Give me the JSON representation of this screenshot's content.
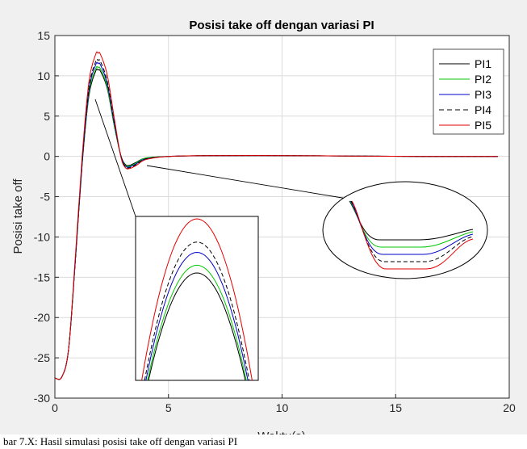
{
  "chart_data": {
    "type": "line",
    "title": "Posisi take off dengan variasi PI",
    "xlabel": "Waktu(s)",
    "ylabel": "Posisi take off",
    "xlim": [
      0,
      20
    ],
    "ylim": [
      -30,
      15
    ],
    "xticks": [
      0,
      5,
      10,
      15,
      20
    ],
    "yticks": [
      15,
      10,
      5,
      0,
      -5,
      -10,
      -15,
      -20,
      -25,
      -30
    ],
    "grid": true,
    "legend_position": "top-right",
    "series": [
      {
        "name": "PI1",
        "color": "#000000",
        "dash": "solid",
        "peak": 10.7,
        "undershoot": -1.1,
        "x": [
          0,
          0.3,
          0.6,
          0.9,
          1.2,
          1.5,
          1.8,
          1.9,
          2.0,
          2.3,
          2.6,
          2.9,
          3.1,
          3.3,
          3.6,
          4.0,
          5,
          7,
          10,
          13,
          16,
          19.5
        ],
        "y": [
          -27.5,
          -27.4,
          -24,
          -13,
          -1,
          7.5,
          10.6,
          10.7,
          10.6,
          8.5,
          4,
          0.2,
          -1.0,
          -1.1,
          -0.7,
          -0.2,
          0,
          0.1,
          0.1,
          0.05,
          0,
          0
        ]
      },
      {
        "name": "PI2",
        "color": "#00c800",
        "dash": "solid",
        "peak": 11.0,
        "undershoot": -1.2,
        "x": [
          0,
          0.3,
          0.6,
          0.9,
          1.2,
          1.5,
          1.8,
          1.9,
          2.0,
          2.3,
          2.6,
          2.9,
          3.1,
          3.3,
          3.6,
          4.0,
          5,
          7,
          10,
          13,
          16,
          19.5
        ],
        "y": [
          -27.5,
          -27.4,
          -24,
          -13,
          -1,
          7.8,
          10.9,
          11.0,
          10.9,
          8.7,
          4,
          0.1,
          -1.1,
          -1.2,
          -0.8,
          -0.2,
          0,
          0.1,
          0.1,
          0.05,
          0,
          0
        ]
      },
      {
        "name": "PI3",
        "color": "#0000c8",
        "dash": "solid",
        "peak": 11.5,
        "undershoot": -1.3,
        "x": [
          0,
          0.3,
          0.6,
          0.9,
          1.2,
          1.5,
          1.8,
          1.9,
          2.0,
          2.3,
          2.6,
          2.9,
          3.1,
          3.3,
          3.6,
          4.0,
          5,
          7,
          10,
          13,
          16,
          19.5
        ],
        "y": [
          -27.5,
          -27.4,
          -24,
          -13,
          -0.8,
          8.2,
          11.4,
          11.5,
          11.4,
          9.1,
          4.3,
          0.1,
          -1.2,
          -1.3,
          -0.9,
          -0.3,
          0,
          0.1,
          0.1,
          0.05,
          0,
          0
        ]
      },
      {
        "name": "PI4",
        "color": "#000000",
        "dash": "dashed",
        "peak": 11.9,
        "undershoot": -1.4,
        "x": [
          0,
          0.3,
          0.6,
          0.9,
          1.2,
          1.5,
          1.8,
          1.9,
          2.0,
          2.3,
          2.6,
          2.9,
          3.1,
          3.3,
          3.6,
          4.0,
          5,
          7,
          10,
          13,
          16,
          19.5
        ],
        "y": [
          -27.5,
          -27.4,
          -24,
          -13,
          -0.6,
          8.5,
          11.8,
          11.9,
          11.8,
          9.4,
          4.5,
          0.1,
          -1.3,
          -1.4,
          -1.0,
          -0.3,
          0,
          0.1,
          0.1,
          0.05,
          0,
          0
        ]
      },
      {
        "name": "PI5",
        "color": "#e60000",
        "dash": "solid",
        "peak": 12.8,
        "undershoot": -1.5,
        "x": [
          0,
          0.3,
          0.6,
          0.9,
          1.2,
          1.5,
          1.8,
          1.9,
          2.0,
          2.3,
          2.6,
          2.9,
          3.1,
          3.3,
          3.6,
          4.0,
          5,
          7,
          10,
          13,
          16,
          19.5
        ],
        "y": [
          -27.5,
          -27.4,
          -24,
          -12.5,
          0,
          9.3,
          12.7,
          12.8,
          12.7,
          10.2,
          5,
          0,
          -1.4,
          -1.5,
          -1.1,
          -0.4,
          0,
          0.1,
          0.1,
          0.05,
          0,
          0
        ]
      }
    ]
  },
  "caption": "bar 7.X: Hasil simulasi posisi take off dengan variasi PI"
}
